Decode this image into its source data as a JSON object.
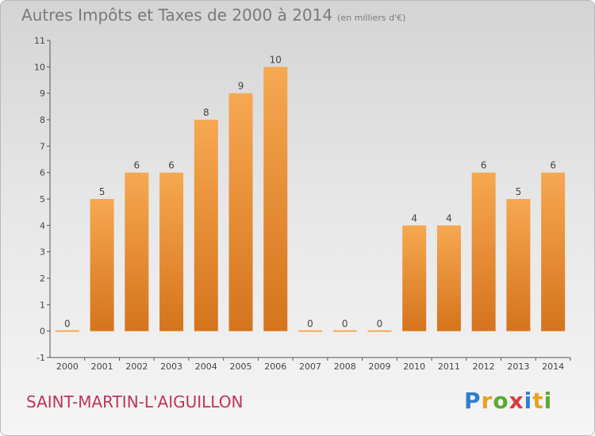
{
  "title": "Autres Impôts et Taxes de 2000 à 2014",
  "unit": "(en milliers d'€)",
  "commune": "SAINT-MARTIN-L'AIGUILLON",
  "logo": "Proxiti",
  "colors": {
    "bar_top": "#f6a851",
    "bar_bottom": "#d5741c",
    "axis": "#555555"
  },
  "chart_data": {
    "type": "bar",
    "categories": [
      "2000",
      "2001",
      "2002",
      "2003",
      "2004",
      "2005",
      "2006",
      "2007",
      "2008",
      "2009",
      "2010",
      "2011",
      "2012",
      "2013",
      "2014"
    ],
    "values": [
      0,
      5,
      6,
      6,
      8,
      9,
      10,
      0,
      0,
      0,
      4,
      4,
      6,
      5,
      6
    ],
    "ylim": [
      -1,
      11
    ],
    "yticks": [
      "-1",
      "0",
      "1",
      "2",
      "3",
      "4",
      "5",
      "6",
      "7",
      "8",
      "9",
      "10",
      "11"
    ],
    "grid": false
  }
}
